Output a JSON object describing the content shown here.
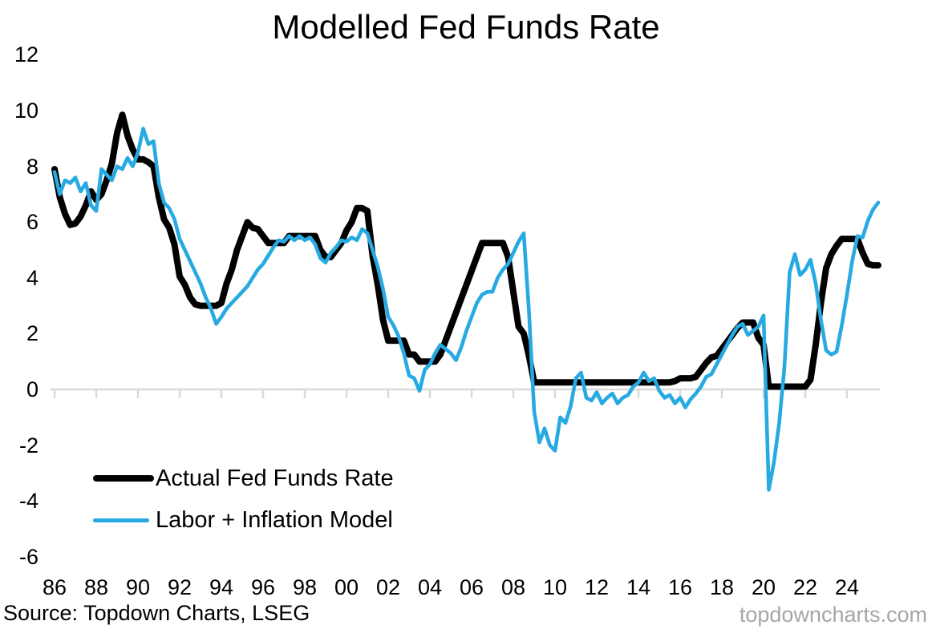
{
  "title": "Modelled Fed Funds Rate",
  "legend": [
    {
      "label": "Actual Fed Funds Rate",
      "color": "#000000"
    },
    {
      "label": "Labor + Inflation Model",
      "color": "#27AAE1"
    }
  ],
  "footer": {
    "source": "Source: Topdown Charts, LSEG",
    "watermark": "topdowncharts.com",
    "watermark_color": "#A6A6A6"
  },
  "chart_data": {
    "type": "line",
    "title": "Modelled Fed Funds Rate",
    "xlabel": "",
    "ylabel": "",
    "x_unit": "year",
    "x_start": 1986,
    "x_step": 0.25,
    "x_end": 2025.5,
    "ylim": [
      -6,
      12
    ],
    "xlim": [
      1985.8,
      2025.8
    ],
    "grid": "zero-axis-only",
    "axis_color": "#D9D9D9",
    "legend_position": "inside-bottom-left",
    "y_ticks": [
      {
        "label": "12",
        "value": 12
      },
      {
        "label": "10",
        "value": 10
      },
      {
        "label": "8",
        "value": 8
      },
      {
        "label": "6",
        "value": 6
      },
      {
        "label": "4",
        "value": 4
      },
      {
        "label": "2",
        "value": 2
      },
      {
        "label": "0",
        "value": 0
      },
      {
        "label": "-2",
        "value": -2
      },
      {
        "label": "-4",
        "value": -4
      },
      {
        "label": "-6",
        "value": -6
      }
    ],
    "x_ticks": [
      {
        "label": "86",
        "year": 1986
      },
      {
        "label": "88",
        "year": 1988
      },
      {
        "label": "90",
        "year": 1990
      },
      {
        "label": "92",
        "year": 1992
      },
      {
        "label": "94",
        "year": 1994
      },
      {
        "label": "96",
        "year": 1996
      },
      {
        "label": "98",
        "year": 1998
      },
      {
        "label": "00",
        "year": 2000
      },
      {
        "label": "02",
        "year": 2002
      },
      {
        "label": "04",
        "year": 2004
      },
      {
        "label": "06",
        "year": 2006
      },
      {
        "label": "08",
        "year": 2008
      },
      {
        "label": "10",
        "year": 2010
      },
      {
        "label": "12",
        "year": 2012
      },
      {
        "label": "14",
        "year": 2014
      },
      {
        "label": "16",
        "year": 2016
      },
      {
        "label": "18",
        "year": 2018
      },
      {
        "label": "20",
        "year": 2020
      },
      {
        "label": "22",
        "year": 2022
      },
      {
        "label": "24",
        "year": 2024
      }
    ],
    "series": [
      {
        "name": "Actual Fed Funds Rate",
        "color": "#000000",
        "values": [
          7.9,
          6.9,
          6.3,
          5.9,
          5.95,
          6.2,
          6.6,
          7.1,
          6.8,
          7.0,
          7.5,
          8.1,
          9.2,
          9.85,
          9.1,
          8.6,
          8.25,
          8.25,
          8.15,
          8.0,
          6.9,
          6.1,
          5.8,
          5.2,
          4.05,
          3.75,
          3.3,
          3.05,
          3.0,
          3.0,
          3.0,
          3.0,
          3.1,
          3.8,
          4.3,
          5.0,
          5.5,
          6.0,
          5.8,
          5.75,
          5.5,
          5.25,
          5.25,
          5.25,
          5.25,
          5.5,
          5.5,
          5.5,
          5.5,
          5.5,
          5.5,
          5.0,
          4.75,
          4.75,
          5.0,
          5.25,
          5.7,
          6.0,
          6.5,
          6.5,
          6.4,
          4.8,
          3.75,
          2.5,
          1.75,
          1.75,
          1.75,
          1.75,
          1.25,
          1.25,
          1.0,
          1.0,
          1.0,
          1.0,
          1.25,
          1.75,
          2.25,
          2.75,
          3.25,
          3.75,
          4.25,
          4.75,
          5.25,
          5.25,
          5.25,
          5.25,
          5.25,
          4.75,
          3.5,
          2.25,
          2.0,
          1.2,
          0.25,
          0.25,
          0.25,
          0.25,
          0.25,
          0.25,
          0.25,
          0.25,
          0.25,
          0.25,
          0.25,
          0.25,
          0.25,
          0.25,
          0.25,
          0.25,
          0.25,
          0.25,
          0.25,
          0.25,
          0.25,
          0.25,
          0.25,
          0.25,
          0.25,
          0.25,
          0.25,
          0.3,
          0.4,
          0.4,
          0.4,
          0.45,
          0.7,
          0.95,
          1.15,
          1.2,
          1.45,
          1.7,
          1.95,
          2.2,
          2.4,
          2.4,
          2.4,
          1.85,
          1.6,
          0.1,
          0.1,
          0.1,
          0.1,
          0.1,
          0.1,
          0.1,
          0.1,
          0.35,
          1.6,
          3.1,
          4.35,
          4.85,
          5.15,
          5.4,
          5.4,
          5.4,
          5.4,
          4.9,
          4.5,
          4.45,
          4.45
        ]
      },
      {
        "name": "Labor + Inflation Model",
        "color": "#27AAE1",
        "values": [
          7.8,
          7.0,
          7.5,
          7.4,
          7.6,
          7.1,
          7.4,
          6.6,
          6.4,
          7.9,
          7.7,
          7.5,
          8.0,
          7.9,
          8.3,
          8.0,
          8.5,
          9.35,
          8.8,
          8.9,
          7.4,
          6.7,
          6.5,
          6.1,
          5.4,
          5.0,
          4.6,
          4.2,
          3.8,
          3.3,
          2.9,
          2.35,
          2.6,
          2.9,
          3.1,
          3.3,
          3.5,
          3.7,
          4.0,
          4.3,
          4.5,
          4.8,
          5.1,
          5.35,
          5.3,
          5.5,
          5.35,
          5.5,
          5.35,
          5.45,
          5.2,
          4.7,
          4.55,
          4.9,
          5.1,
          5.35,
          5.3,
          5.45,
          5.35,
          5.75,
          5.6,
          5.0,
          4.4,
          3.6,
          2.6,
          2.3,
          1.9,
          1.3,
          0.5,
          0.4,
          -0.05,
          0.7,
          0.9,
          1.3,
          1.6,
          1.45,
          1.3,
          1.05,
          1.5,
          2.1,
          2.6,
          3.1,
          3.4,
          3.5,
          3.5,
          4.0,
          4.3,
          4.5,
          4.9,
          5.3,
          5.6,
          2.8,
          -0.8,
          -1.9,
          -1.4,
          -2.0,
          -2.2,
          -1.0,
          -1.2,
          -0.6,
          0.4,
          0.6,
          -0.3,
          -0.4,
          -0.1,
          -0.5,
          -0.3,
          -0.15,
          -0.5,
          -0.3,
          -0.2,
          0.1,
          0.25,
          0.6,
          0.3,
          0.4,
          -0.05,
          -0.3,
          -0.2,
          -0.5,
          -0.3,
          -0.65,
          -0.35,
          -0.15,
          0.1,
          0.45,
          0.55,
          0.9,
          1.25,
          1.6,
          1.95,
          2.25,
          2.35,
          1.95,
          2.1,
          2.25,
          2.65,
          -3.6,
          -2.6,
          -1.2,
          0.8,
          4.2,
          4.85,
          4.1,
          4.3,
          4.65,
          3.8,
          2.5,
          1.4,
          1.25,
          1.35,
          2.3,
          3.4,
          4.6,
          5.5,
          5.45,
          6.05,
          6.45,
          6.7
        ]
      }
    ]
  }
}
